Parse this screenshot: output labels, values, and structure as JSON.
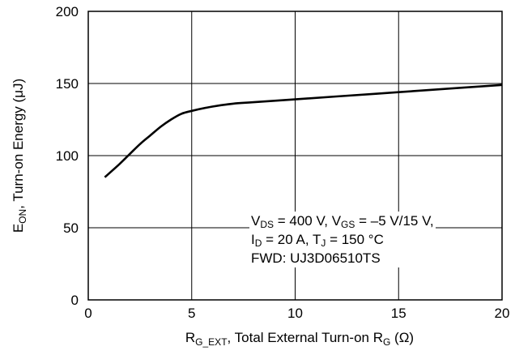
{
  "chart_data": {
    "type": "line",
    "xlabel": {
      "main": "R",
      "sub": "G_EXT",
      "rest": ", Total External Turn-on R",
      "sub2": "G",
      "unit": " (Ω)"
    },
    "ylabel": {
      "main": "E",
      "sub": "ON",
      "rest": ", Turn-on Energy (μJ)"
    },
    "xlim": [
      0,
      20
    ],
    "ylim": [
      0,
      200
    ],
    "x_ticks": [
      0,
      5,
      10,
      15,
      20
    ],
    "y_ticks": [
      0,
      50,
      100,
      150,
      200
    ],
    "x_tick_labels": [
      "0",
      "5",
      "10",
      "15",
      "20"
    ],
    "y_tick_labels": [
      "0",
      "50",
      "100",
      "150",
      "200"
    ],
    "grid": true,
    "series": [
      {
        "x": [
          0.8,
          1.5,
          2.0,
          2.5,
          3.0,
          3.5,
          4.0,
          4.5,
          5.0,
          6.0,
          7.0,
          8.0,
          10.0,
          12.0,
          15.0,
          18.0,
          20.0
        ],
        "y": [
          85,
          94,
          101,
          108,
          114,
          120,
          125,
          129,
          131,
          134,
          136,
          137,
          139,
          141,
          144,
          147,
          149
        ]
      }
    ],
    "annotation": {
      "line1": {
        "a": "V",
        "a_sub": "DS",
        "b": " = 400 V, V",
        "b_sub": "GS",
        "c": " = –5 V/15 V,"
      },
      "line2": {
        "a": "I",
        "a_sub": "D",
        "b": " = 20 A, T",
        "b_sub": "J",
        "c": " = 150 °C"
      },
      "line3": "FWD: UJ3D06510TS"
    }
  }
}
